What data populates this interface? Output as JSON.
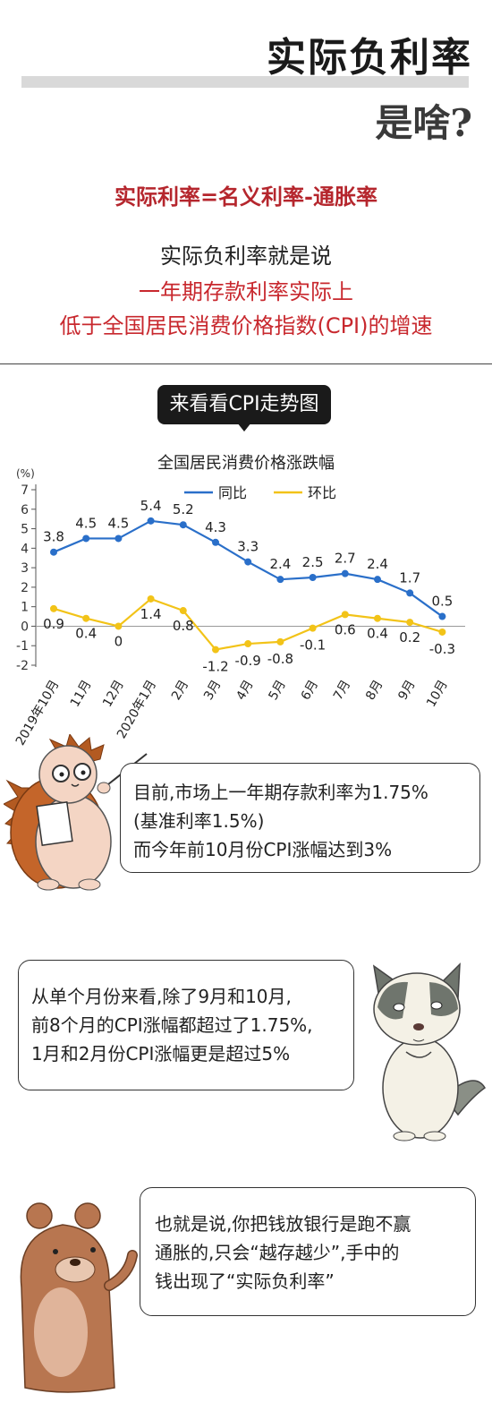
{
  "header": {
    "title_line1": "实际负利率",
    "title_line2": "是啥?"
  },
  "formula": "实际利率=名义利率-通胀率",
  "intro": {
    "line1": "实际负利率就是说",
    "line2": "一年期存款利率实际上",
    "line3": "低于全国居民消费价格指数(CPI)的增速"
  },
  "section_label": "来看看CPI走势图",
  "chart_data": {
    "type": "line",
    "title": "全国居民消费价格涨跌幅",
    "ylabel": "(%)",
    "ylim": [
      -2,
      7
    ],
    "yticks": [
      -2,
      -1,
      0,
      1,
      2,
      3,
      4,
      5,
      6,
      7
    ],
    "categories": [
      "2019年10月",
      "11月",
      "12月",
      "2020年1月",
      "2月",
      "3月",
      "4月",
      "5月",
      "6月",
      "7月",
      "8月",
      "9月",
      "10月"
    ],
    "series": [
      {
        "name": "同比",
        "color": "#2a6fc9",
        "values": [
          3.8,
          4.5,
          4.5,
          5.4,
          5.2,
          4.3,
          3.3,
          2.4,
          2.5,
          2.7,
          2.4,
          1.7,
          0.5
        ],
        "labels": [
          "3.8",
          "4.5",
          "4.5",
          "5.4",
          "5.2",
          "4.3",
          "3.3",
          "2.4",
          "2.5",
          "2.7",
          "2.4",
          "1.7",
          "0.5"
        ]
      },
      {
        "name": "环比",
        "color": "#f2c318",
        "values": [
          0.9,
          0.4,
          0,
          1.4,
          0.8,
          -1.2,
          -0.9,
          -0.8,
          -0.1,
          0.6,
          0.4,
          0.2,
          -0.3
        ],
        "labels": [
          "0.9",
          "0.4",
          "0",
          "1.4",
          "0.8",
          "-1.2",
          "-0.9",
          "-0.8",
          "-0.1",
          "0.6",
          "0.4",
          "0.2",
          "-0.3"
        ]
      }
    ],
    "grid": false,
    "legend": "top-right"
  },
  "bubbles": {
    "b1": [
      "目前,市场上一年期存款利率为1.75%",
      "(基准利率1.5%)",
      "而今年前10月份CPI涨幅达到3%"
    ],
    "b2": [
      "从单个月份来看,除了9月和10月,",
      "前8个月的CPI涨幅都超过了1.75%,",
      "1月和2月份CPI涨幅更是超过5%"
    ],
    "b3": [
      "也就是说,你把钱放银行是跑不赢",
      "通胀的,只会“越存越少”,手中的",
      "钱出现了“实际负利率”"
    ]
  },
  "colors": {
    "accent_red": "#b5262d",
    "blue": "#2a6fc9",
    "yellow": "#f2c318"
  }
}
